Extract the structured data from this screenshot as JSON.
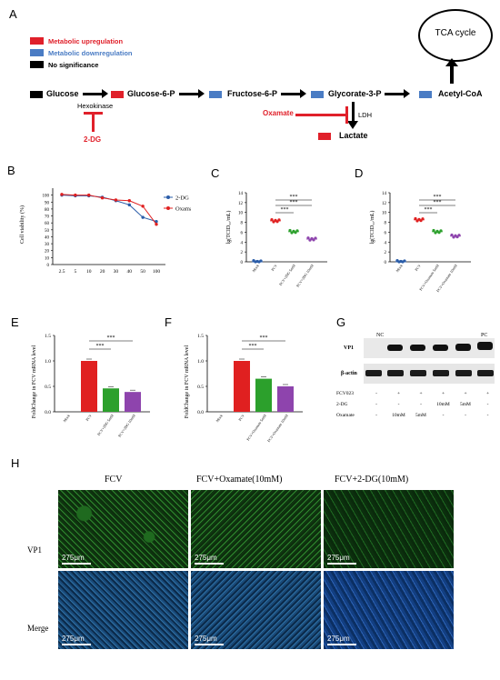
{
  "panels": {
    "A": "A",
    "B": "B",
    "C": "C",
    "D": "D",
    "E": "E",
    "F": "F",
    "G": "G",
    "H": "H"
  },
  "pathway": {
    "legend": [
      {
        "label": "Metabolic upregulation",
        "color": "#e0202a"
      },
      {
        "label": "Metabolic downregulation",
        "color": "#4a7cc4"
      },
      {
        "label": "No significance",
        "color": "#000000"
      }
    ],
    "nodes": {
      "glucose": "Glucose",
      "g6p": "Glucose-6-P",
      "f6p": "Fructose-6-P",
      "g3p": "Glycorate-3-P",
      "acoa": "Acetyl-CoA",
      "tca": "TCA cycle",
      "lactate": "Lactate"
    },
    "hexokinase": "Hexokinase",
    "inhibitor1": "2-DG",
    "oxamate": "Oxamate",
    "ldh": "LDH"
  },
  "panelB": {
    "ylabel": "Cell viability (%)",
    "legend": [
      {
        "name": "2-DG",
        "color": "#2a5ca8"
      },
      {
        "name": "Oxamate",
        "color": "#e02020"
      }
    ],
    "chart_data": {
      "type": "line",
      "categories": [
        "2.5",
        "5",
        "10",
        "20",
        "30",
        "40",
        "50",
        "100"
      ],
      "series": [
        {
          "name": "2-DG",
          "values": [
            100,
            99,
            99,
            97,
            92,
            86,
            68,
            62
          ]
        },
        {
          "name": "Oxamate",
          "values": [
            101,
            100,
            100,
            96,
            93,
            92,
            84,
            58
          ]
        }
      ],
      "ylim": [
        0,
        110
      ],
      "yticks": [
        "0",
        "10",
        "20",
        "30",
        "40",
        "50",
        "60",
        "70",
        "80",
        "90",
        "100"
      ]
    }
  },
  "panelC": {
    "ylabel": "lg(TCID₅₀/mL)",
    "chart_data": {
      "type": "scatter",
      "categories": [
        "Mock",
        "FCV",
        "FCV+2DG 5mM",
        "FCV+2DG 10mM"
      ],
      "values": [
        0,
        8.3,
        6.1,
        4.6
      ],
      "colors": [
        "#2a5ca8",
        "#e02020",
        "#2ca02c",
        "#8e44ad"
      ],
      "ylim": [
        0,
        14
      ],
      "yticks": [
        "0",
        "2",
        "4",
        "6",
        "8",
        "10",
        "12",
        "14"
      ]
    },
    "sig": [
      "***",
      "***",
      "***"
    ]
  },
  "panelD": {
    "ylabel": "lg(TCID₅₀/mL)",
    "chart_data": {
      "type": "scatter",
      "categories": [
        "Mock",
        "FCV",
        "FCV+Oxamate 5mM",
        "FCV+Oxamate 10mM"
      ],
      "values": [
        0,
        8.5,
        6.1,
        5.2
      ],
      "colors": [
        "#2a5ca8",
        "#e02020",
        "#2ca02c",
        "#8e44ad"
      ],
      "ylim": [
        0,
        14
      ],
      "yticks": [
        "0",
        "2",
        "4",
        "6",
        "8",
        "10",
        "12",
        "14"
      ]
    },
    "sig": [
      "***",
      "***",
      "***"
    ]
  },
  "panelE": {
    "ylabel": "FoldChange in FCV mRNA level",
    "chart_data": {
      "type": "bar",
      "categories": [
        "Mock",
        "FCV",
        "FCV+2DG 5mM",
        "FCV+2DG 10mM"
      ],
      "values": [
        0,
        1.0,
        0.46,
        0.39
      ],
      "colors": [
        "#2a5ca8",
        "#e02020",
        "#2ca02c",
        "#8e44ad"
      ],
      "ylim": [
        0,
        1.5
      ],
      "yticks": [
        "0.0",
        "0.5",
        "1.0",
        "1.5"
      ]
    },
    "sig": [
      "***",
      "***"
    ]
  },
  "panelF": {
    "ylabel": "FoldChange in FCV mRNA level",
    "chart_data": {
      "type": "bar",
      "categories": [
        "Mock",
        "FCV",
        "FCV+Oxamate 5mM",
        "FCV+Oxamate 10mM"
      ],
      "values": [
        0,
        1.0,
        0.65,
        0.5
      ],
      "colors": [
        "#2a5ca8",
        "#e02020",
        "#2ca02c",
        "#8e44ad"
      ],
      "ylim": [
        0,
        1.5
      ],
      "yticks": [
        "0.0",
        "0.5",
        "1.0",
        "1.5"
      ]
    },
    "sig": [
      "***",
      "***"
    ]
  },
  "panelG": {
    "nc": "NC",
    "pc": "PC",
    "vp1": "VP1",
    "actin": "β-actin",
    "rows": [
      {
        "label": "FCV023",
        "cells": [
          "-",
          "+",
          "+",
          "+",
          "+",
          "+"
        ]
      },
      {
        "label": "2-DG",
        "cells": [
          "-",
          "-",
          "-",
          "10mM",
          "5mM",
          "-"
        ]
      },
      {
        "label": "Oxamate",
        "cells": [
          "-",
          "10mM",
          "5mM",
          "-",
          "-",
          "-"
        ]
      }
    ]
  },
  "panelH": {
    "columns": [
      "FCV",
      "FCV+Oxamate(10mM)",
      "FCV+2-DG(10mM)"
    ],
    "rows": [
      "VP1",
      "Merge"
    ],
    "scale": "275μm"
  }
}
